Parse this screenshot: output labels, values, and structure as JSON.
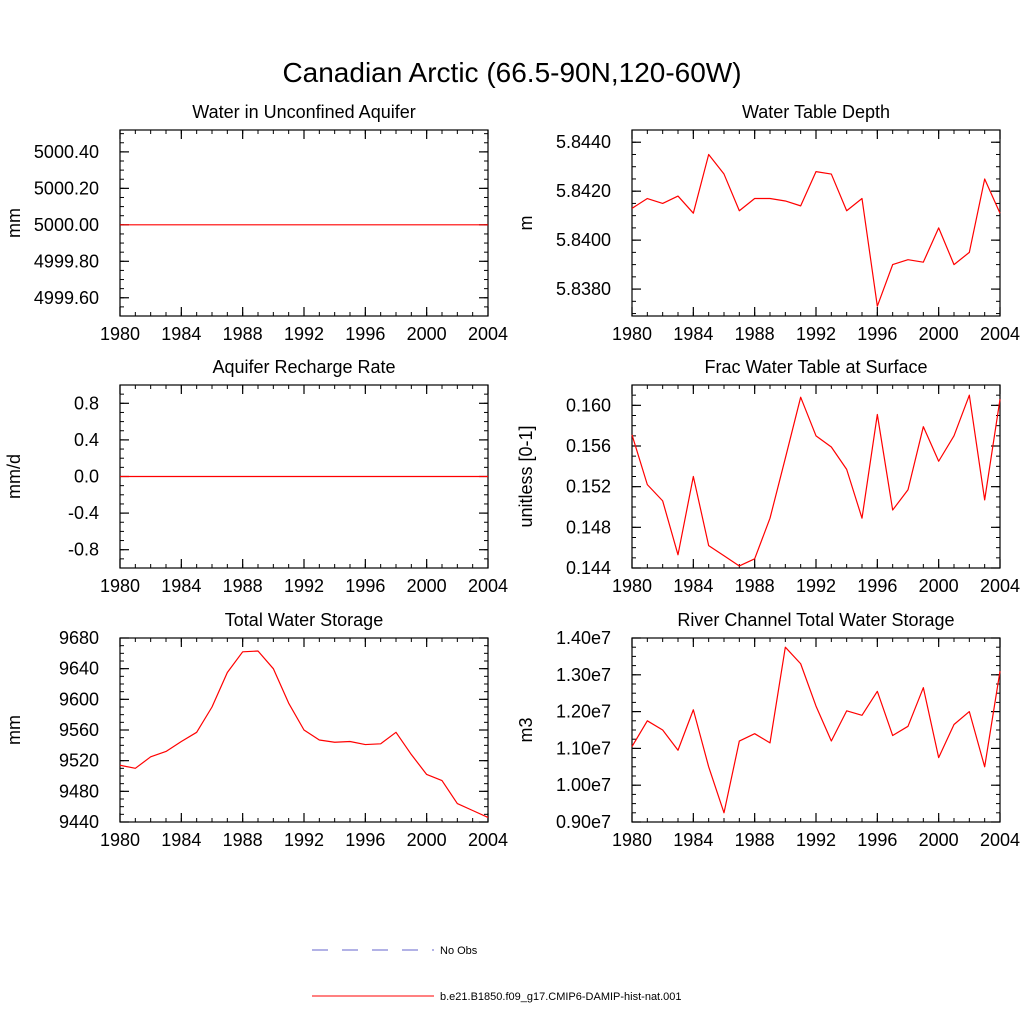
{
  "title": "Canadian Arctic (66.5-90N,120-60W)",
  "colors": {
    "model": "#ff0000",
    "obs": "#6666cc",
    "axis": "#000000"
  },
  "legend": {
    "position": "bottom-center",
    "items": [
      {
        "label": "No Obs",
        "style": "dashed",
        "color": "#6666cc"
      },
      {
        "label": "b.e21.B1850.f09_g17.CMIP6-DAMIP-hist-nat.001",
        "style": "solid",
        "color": "#ff0000"
      }
    ]
  },
  "chart_data": [
    {
      "type": "line",
      "title": "Water in Unconfined Aquifer",
      "xlabel": "",
      "ylabel": "mm",
      "xlim": [
        1980,
        2004
      ],
      "ylim": [
        4999.5,
        5000.52
      ],
      "xticks": [
        1980,
        1984,
        1988,
        1992,
        1996,
        2000,
        2004
      ],
      "xtick_labels": [
        "1980",
        "1984",
        "1988",
        "1992",
        "1996",
        "2000",
        "2004"
      ],
      "yticks": [
        4999.6,
        4999.8,
        5000.0,
        5000.2,
        5000.4
      ],
      "ytick_labels": [
        "4999.60",
        "4999.80",
        "5000.00",
        "5000.20",
        "5000.40"
      ],
      "x": [
        1980,
        1981,
        1982,
        1983,
        1984,
        1985,
        1986,
        1987,
        1988,
        1989,
        1990,
        1991,
        1992,
        1993,
        1994,
        1995,
        1996,
        1997,
        1998,
        1999,
        2000,
        2001,
        2002,
        2003,
        2004
      ],
      "series": [
        {
          "values": [
            5000.0,
            5000.0,
            5000.0,
            5000.0,
            5000.0,
            5000.0,
            5000.0,
            5000.0,
            5000.0,
            5000.0,
            5000.0,
            5000.0,
            5000.0,
            5000.0,
            5000.0,
            5000.0,
            5000.0,
            5000.0,
            5000.0,
            5000.0,
            5000.0,
            5000.0,
            5000.0,
            5000.0,
            5000.0
          ]
        }
      ]
    },
    {
      "type": "line",
      "title": "Water Table Depth",
      "xlabel": "",
      "ylabel": "m",
      "xlim": [
        1980,
        2004
      ],
      "ylim": [
        5.8369,
        5.8445
      ],
      "xticks": [
        1980,
        1984,
        1988,
        1992,
        1996,
        2000,
        2004
      ],
      "xtick_labels": [
        "1980",
        "1984",
        "1988",
        "1992",
        "1996",
        "2000",
        "2004"
      ],
      "yticks": [
        5.838,
        5.84,
        5.842,
        5.844
      ],
      "ytick_labels": [
        "5.8380",
        "5.8400",
        "5.8420",
        "5.8440"
      ],
      "x": [
        1980,
        1981,
        1982,
        1983,
        1984,
        1985,
        1986,
        1987,
        1988,
        1989,
        1990,
        1991,
        1992,
        1993,
        1994,
        1995,
        1996,
        1997,
        1998,
        1999,
        2000,
        2001,
        2002,
        2003,
        2004
      ],
      "series": [
        {
          "values": [
            5.8413,
            5.8417,
            5.8415,
            5.8418,
            5.8411,
            5.8435,
            5.8427,
            5.8412,
            5.8417,
            5.8417,
            5.8416,
            5.8414,
            5.8428,
            5.8427,
            5.8412,
            5.8417,
            5.8373,
            5.839,
            5.8392,
            5.8391,
            5.8405,
            5.839,
            5.8395,
            5.8425,
            5.8411
          ]
        }
      ]
    },
    {
      "type": "line",
      "title": "Aquifer Recharge Rate",
      "xlabel": "",
      "ylabel": "mm/d",
      "xlim": [
        1980,
        2004
      ],
      "ylim": [
        -1.0,
        1.0
      ],
      "xticks": [
        1980,
        1984,
        1988,
        1992,
        1996,
        2000,
        2004
      ],
      "xtick_labels": [
        "1980",
        "1984",
        "1988",
        "1992",
        "1996",
        "2000",
        "2004"
      ],
      "yticks": [
        -0.8,
        -0.4,
        0.0,
        0.4,
        0.8
      ],
      "ytick_labels": [
        "-0.8",
        "-0.4",
        "0.0",
        "0.4",
        "0.8"
      ],
      "x": [
        1980,
        1981,
        1982,
        1983,
        1984,
        1985,
        1986,
        1987,
        1988,
        1989,
        1990,
        1991,
        1992,
        1993,
        1994,
        1995,
        1996,
        1997,
        1998,
        1999,
        2000,
        2001,
        2002,
        2003,
        2004
      ],
      "series": [
        {
          "values": [
            0,
            0,
            0,
            0,
            0,
            0,
            0,
            0,
            0,
            0,
            0,
            0,
            0,
            0,
            0,
            0,
            0,
            0,
            0,
            0,
            0,
            0,
            0,
            0,
            0
          ]
        }
      ]
    },
    {
      "type": "line",
      "title": "Frac Water Table at Surface",
      "xlabel": "",
      "ylabel": "unitless [0-1]",
      "xlim": [
        1980,
        2004
      ],
      "ylim": [
        0.144,
        0.162
      ],
      "xticks": [
        1980,
        1984,
        1988,
        1992,
        1996,
        2000,
        2004
      ],
      "xtick_labels": [
        "1980",
        "1984",
        "1988",
        "1992",
        "1996",
        "2000",
        "2004"
      ],
      "yticks": [
        0.144,
        0.148,
        0.152,
        0.156,
        0.16
      ],
      "ytick_labels": [
        "0.144",
        "0.148",
        "0.152",
        "0.156",
        "0.160"
      ],
      "x": [
        1980,
        1981,
        1982,
        1983,
        1984,
        1985,
        1986,
        1987,
        1988,
        1989,
        1990,
        1991,
        1992,
        1993,
        1994,
        1995,
        1996,
        1997,
        1998,
        1999,
        2000,
        2001,
        2002,
        2003,
        2004
      ],
      "series": [
        {
          "values": [
            0.1571,
            0.1522,
            0.1506,
            0.1453,
            0.153,
            0.1462,
            0.1452,
            0.1442,
            0.1449,
            0.1489,
            0.1548,
            0.1608,
            0.157,
            0.1559,
            0.1537,
            0.1489,
            0.1591,
            0.1497,
            0.1517,
            0.1579,
            0.1545,
            0.157,
            0.161,
            0.1507,
            0.1606
          ]
        }
      ]
    },
    {
      "type": "line",
      "title": "Total Water Storage",
      "xlabel": "",
      "ylabel": "mm",
      "xlim": [
        1980,
        2004
      ],
      "ylim": [
        9440,
        9680
      ],
      "xticks": [
        1980,
        1984,
        1988,
        1992,
        1996,
        2000,
        2004
      ],
      "xtick_labels": [
        "1980",
        "1984",
        "1988",
        "1992",
        "1996",
        "2000",
        "2004"
      ],
      "yticks": [
        9440,
        9480,
        9520,
        9560,
        9600,
        9640,
        9680
      ],
      "ytick_labels": [
        "9440",
        "9480",
        "9520",
        "9560",
        "9600",
        "9640",
        "9680"
      ],
      "x": [
        1980,
        1981,
        1982,
        1983,
        1984,
        1985,
        1986,
        1987,
        1988,
        1989,
        1990,
        1991,
        1992,
        1993,
        1994,
        1995,
        1996,
        1997,
        1998,
        1999,
        2000,
        2001,
        2002,
        2003,
        2004
      ],
      "series": [
        {
          "values": [
            9514,
            9510,
            9525,
            9532,
            9545,
            9557,
            9590,
            9635,
            9662,
            9663,
            9640,
            9595,
            9560,
            9547,
            9544,
            9545,
            9541,
            9542,
            9557,
            9528,
            9502,
            9494,
            9464,
            9455,
            9446
          ]
        }
      ]
    },
    {
      "type": "line",
      "title": "River Channel Total Water Storage",
      "xlabel": "",
      "ylabel": "m3",
      "xlim": [
        1980,
        2004
      ],
      "ylim": [
        9000000,
        14000000
      ],
      "xticks": [
        1980,
        1984,
        1988,
        1992,
        1996,
        2000,
        2004
      ],
      "xtick_labels": [
        "1980",
        "1984",
        "1988",
        "1992",
        "1996",
        "2000",
        "2004"
      ],
      "yticks": [
        9000000,
        10000000,
        11000000,
        12000000,
        13000000,
        14000000
      ],
      "ytick_labels": [
        "0.90e7",
        "1.00e7",
        "1.10e7",
        "1.20e7",
        "1.30e7",
        "1.40e7"
      ],
      "x": [
        1980,
        1981,
        1982,
        1983,
        1984,
        1985,
        1986,
        1987,
        1988,
        1989,
        1990,
        1991,
        1992,
        1993,
        1994,
        1995,
        1996,
        1997,
        1998,
        1999,
        2000,
        2001,
        2002,
        2003,
        2004
      ],
      "series": [
        {
          "values": [
            11050000,
            11750000,
            11500000,
            10950000,
            12050000,
            10500000,
            9250000,
            11200000,
            11400000,
            11150000,
            13750000,
            13300000,
            12150000,
            11200000,
            12020000,
            11900000,
            12550000,
            11350000,
            11600000,
            12650000,
            10750000,
            11650000,
            12000000,
            10500000,
            13100000
          ]
        }
      ]
    }
  ]
}
